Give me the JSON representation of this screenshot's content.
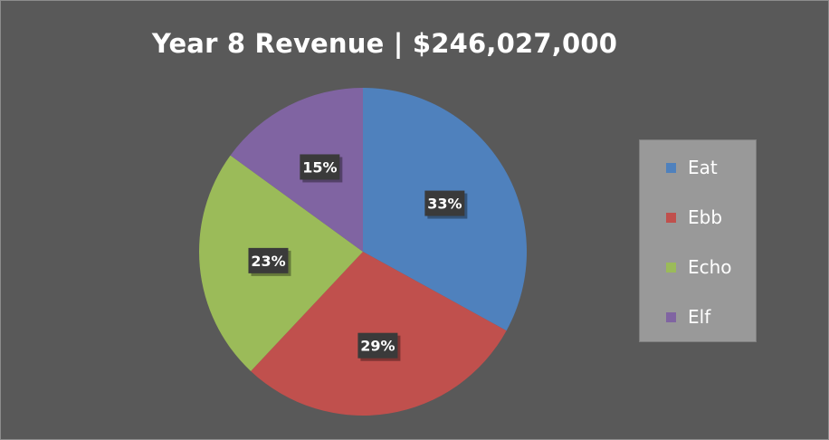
{
  "chart_data": {
    "type": "pie",
    "title": "Year 8 Revenue | $246,027,000",
    "categories": [
      "Eat",
      "Ebb",
      "Echo",
      "Elf"
    ],
    "values": [
      33,
      29,
      23,
      15
    ],
    "data_labels": [
      "33%",
      "29%",
      "23%",
      "15%"
    ],
    "colors": [
      "#4f81bd",
      "#c0504d",
      "#9bbb59",
      "#8064a2"
    ],
    "legend_position": "right",
    "start_angle": "12 o'clock",
    "direction": "clockwise"
  },
  "legend": {
    "items": [
      {
        "label": "Eat",
        "color": "#4f81bd"
      },
      {
        "label": "Ebb",
        "color": "#c0504d"
      },
      {
        "label": "Echo",
        "color": "#9bbb59"
      },
      {
        "label": "Elf",
        "color": "#8064a2"
      }
    ]
  }
}
